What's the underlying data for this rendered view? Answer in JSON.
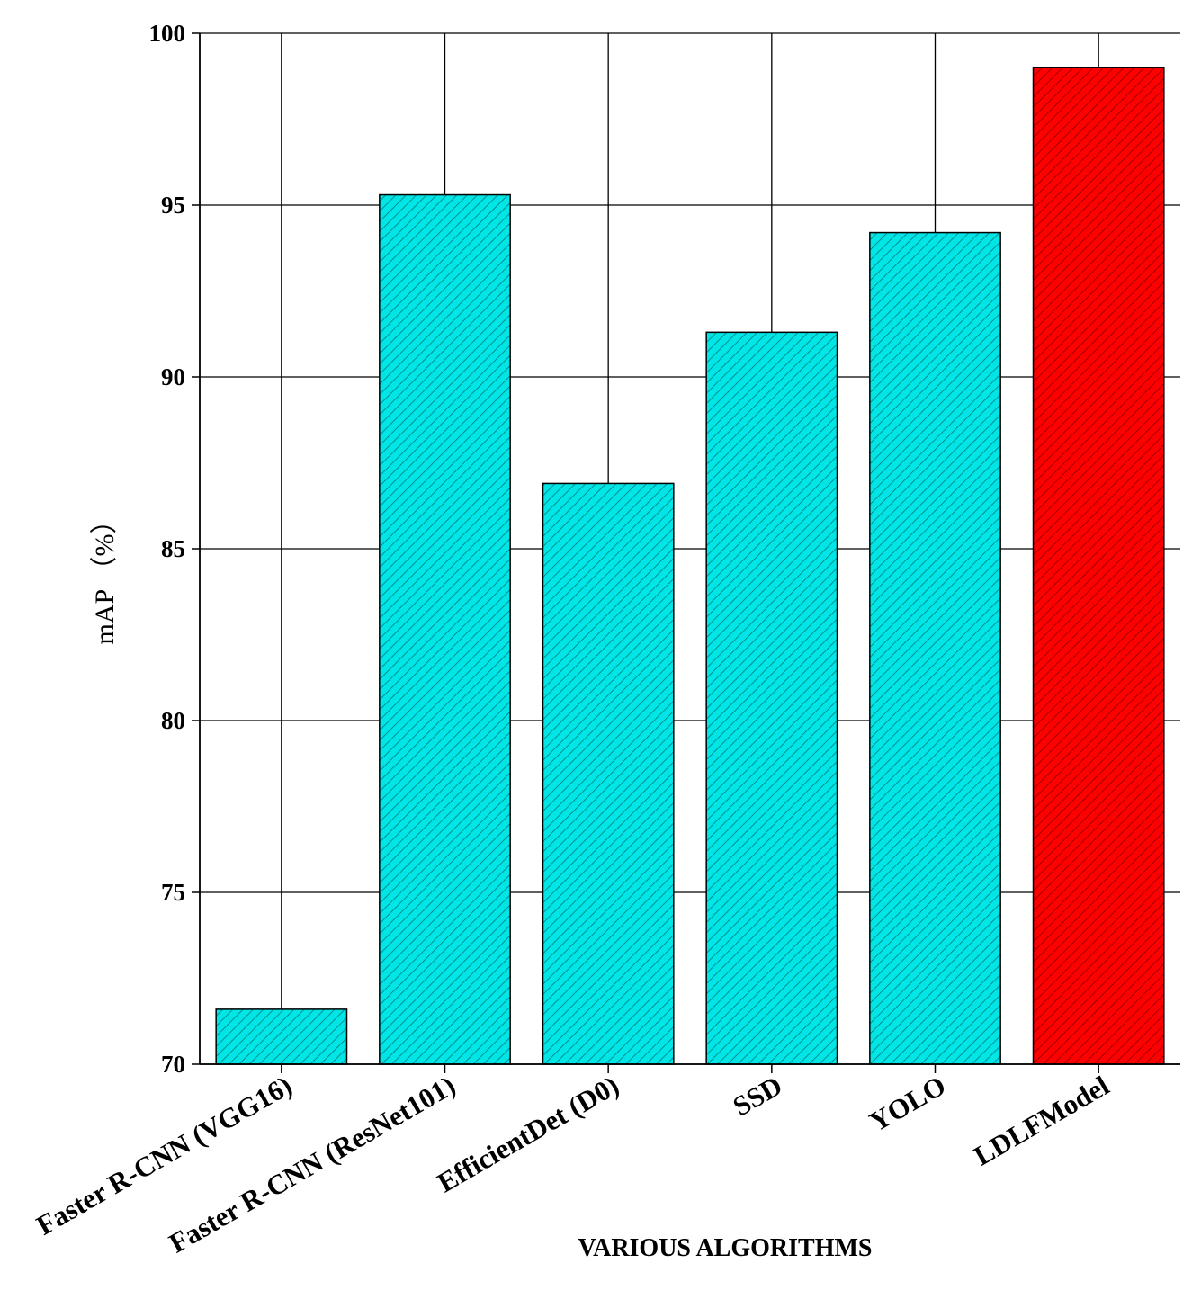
{
  "chart_data": {
    "type": "bar",
    "title": "",
    "xlabel": "VARIOUS ALGORITHMS",
    "ylabel": "mAP （%）",
    "categories": [
      "Faster R-CNN (VGG16)",
      "Faster R-CNN (ResNet101)",
      "EfficientDet (D0)",
      "SSD",
      "YOLO",
      "LDLFModel"
    ],
    "values": [
      71.6,
      95.3,
      86.9,
      91.3,
      94.2,
      99.0
    ],
    "bar_colors": [
      "#00e5e5",
      "#00e5e5",
      "#00e5e5",
      "#00e5e5",
      "#00e5e5",
      "#ff0000"
    ],
    "ylim": [
      70,
      100
    ],
    "yticks": [
      "70",
      "75",
      "80",
      "85",
      "90",
      "95",
      "100"
    ],
    "grid": true,
    "hatch": "diagonal",
    "legend": "none"
  }
}
